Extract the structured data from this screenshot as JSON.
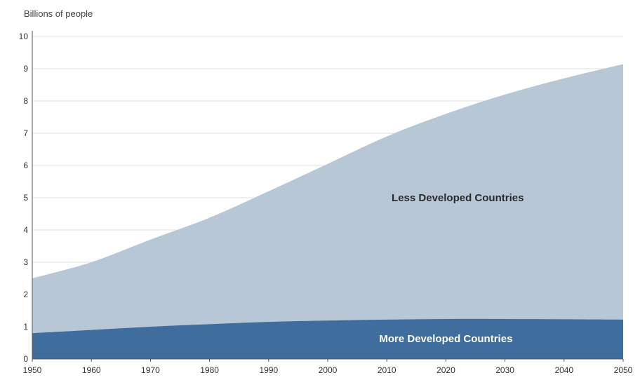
{
  "chart_data": {
    "type": "area",
    "stacked": true,
    "title": "",
    "xlabel": "",
    "ylabel": "Billions of people",
    "xlim": [
      1950,
      2050
    ],
    "ylim": [
      0,
      10
    ],
    "grid": true,
    "x": [
      1950,
      1960,
      1970,
      1980,
      1990,
      2000,
      2010,
      2020,
      2030,
      2040,
      2050
    ],
    "x_ticks": [
      "1950",
      "1960",
      "1970",
      "1980",
      "1990",
      "2000",
      "2010",
      "2020",
      "2030",
      "2040",
      "2050"
    ],
    "y_ticks": [
      "0",
      "1",
      "2",
      "3",
      "4",
      "5",
      "6",
      "7",
      "8",
      "9",
      "10"
    ],
    "series": [
      {
        "name": "More Developed Countries",
        "color": "#3f6e9e",
        "label_color": "#ffffff",
        "values": [
          0.8,
          0.9,
          1.0,
          1.08,
          1.15,
          1.19,
          1.22,
          1.24,
          1.24,
          1.23,
          1.22
        ]
      },
      {
        "name": "Less Developed Countries",
        "color": "#b8c7d6",
        "label_color": "#2a2a2a",
        "values": [
          1.7,
          2.1,
          2.7,
          3.3,
          4.05,
          4.86,
          5.68,
          6.36,
          6.96,
          7.47,
          7.92
        ]
      }
    ]
  }
}
